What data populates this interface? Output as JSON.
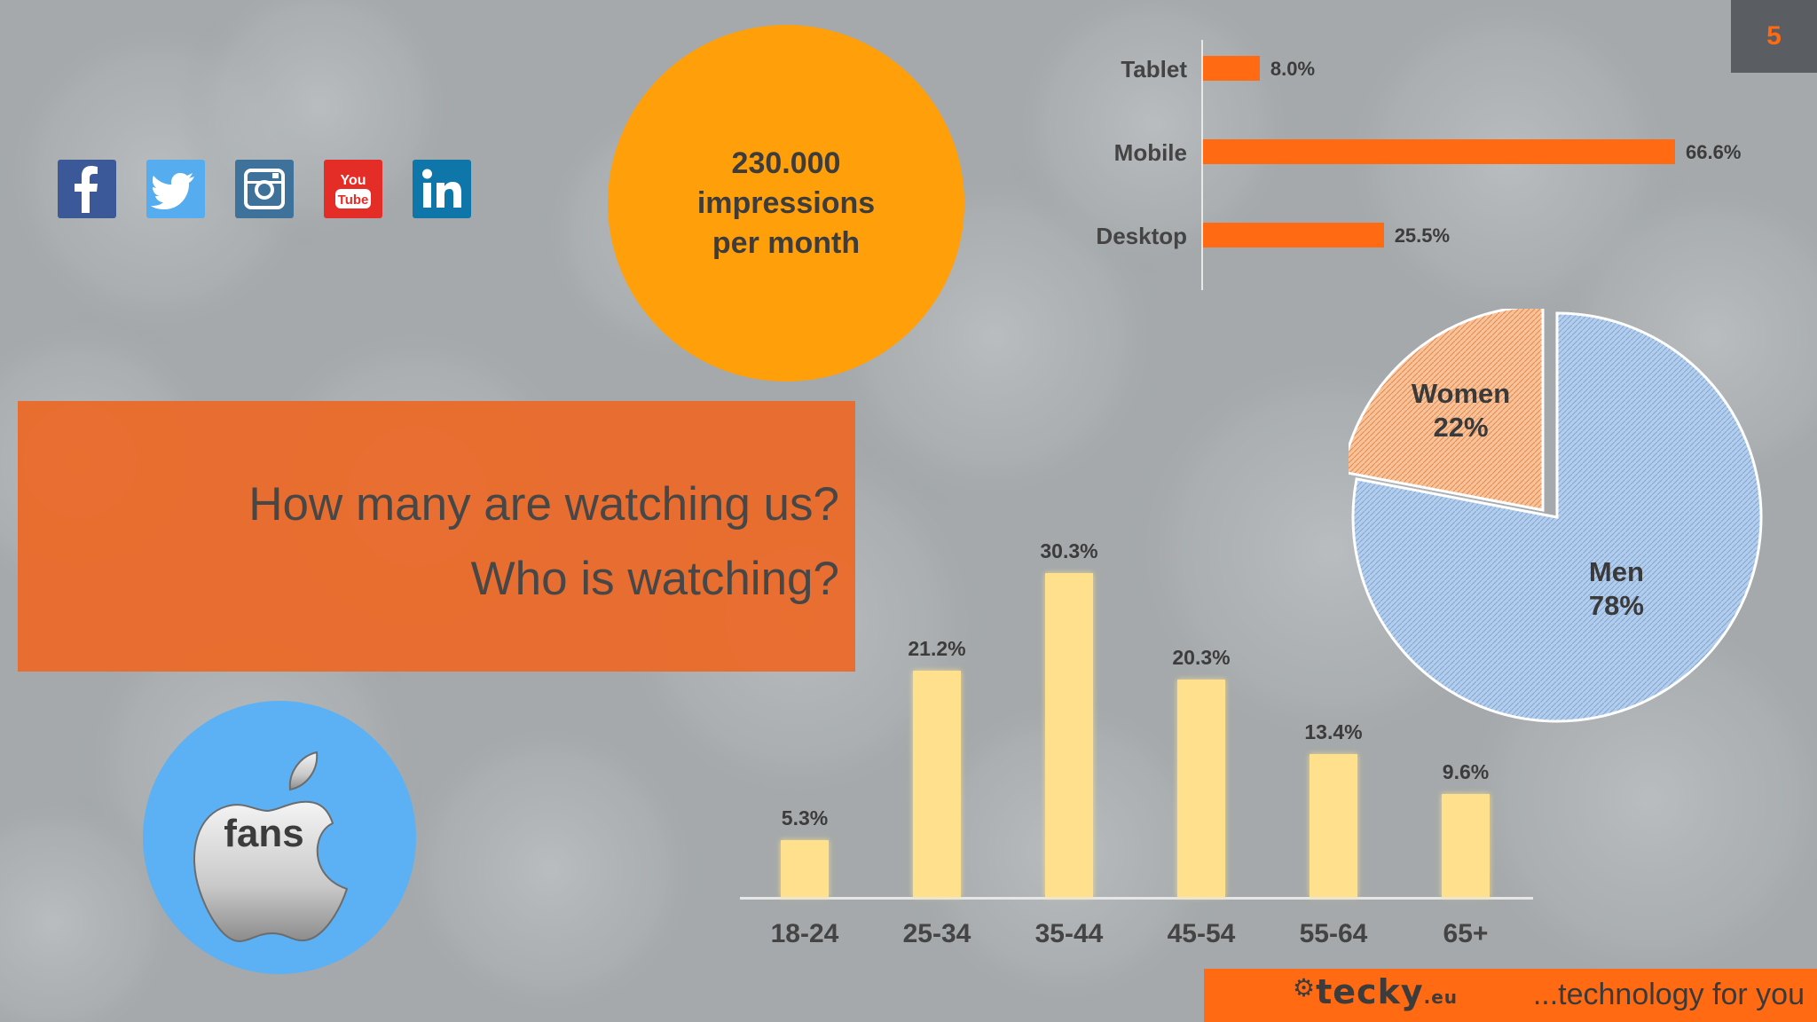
{
  "slide": {
    "page_number": "5"
  },
  "colors": {
    "accent_orange": "#ff6a13",
    "circle_orange": "#ff9f0a",
    "banner_orange": "#ed6825",
    "age_bar": "#ffe08c",
    "fans_blue": "#5cb0f4",
    "men": "#a9c6e8",
    "women": "#f4b183"
  },
  "social": [
    {
      "icon": "facebook-icon",
      "color": "#3b5998"
    },
    {
      "icon": "twitter-icon",
      "color": "#55acee"
    },
    {
      "icon": "instagram-icon",
      "color": "#3f729b"
    },
    {
      "icon": "youtube-icon",
      "color": "#e52d27"
    },
    {
      "icon": "linkedin-icon",
      "color": "#0e76a8"
    }
  ],
  "impressions": {
    "line1": "230.000",
    "line2": "impressions",
    "line3": "per month"
  },
  "banner": {
    "line1": "How many are watching us?",
    "line2": "Who is watching?"
  },
  "fans": {
    "label": "fans",
    "icon": "apple-logo-icon"
  },
  "footer": {
    "logo": "tecky",
    "logo_suffix": ".eu",
    "tagline": "...technology for you"
  },
  "chart_data": [
    {
      "type": "bar",
      "orientation": "horizontal",
      "categories": [
        "Tablet",
        "Mobile",
        "Desktop"
      ],
      "values": [
        8.0,
        66.6,
        25.5
      ],
      "labels": [
        "8.0%",
        "66.6%",
        "25.5%"
      ],
      "xlim": [
        0,
        70
      ],
      "color": "#ff6a13"
    },
    {
      "type": "bar",
      "categories": [
        "18-24",
        "25-34",
        "35-44",
        "45-54",
        "55-64",
        "65+"
      ],
      "values": [
        5.3,
        21.2,
        30.3,
        20.3,
        13.4,
        9.6
      ],
      "labels": [
        "5.3%",
        "21.2%",
        "30.3%",
        "20.3%",
        "13.4%",
        "9.6%"
      ],
      "ylim": [
        0,
        30.3
      ],
      "color": "#ffe08c"
    },
    {
      "type": "pie",
      "slices": [
        {
          "name": "Women",
          "value": 22,
          "label": "22%",
          "color": "#f4b183"
        },
        {
          "name": "Men",
          "value": 78,
          "label": "78%",
          "color": "#a9c6e8"
        }
      ]
    }
  ]
}
